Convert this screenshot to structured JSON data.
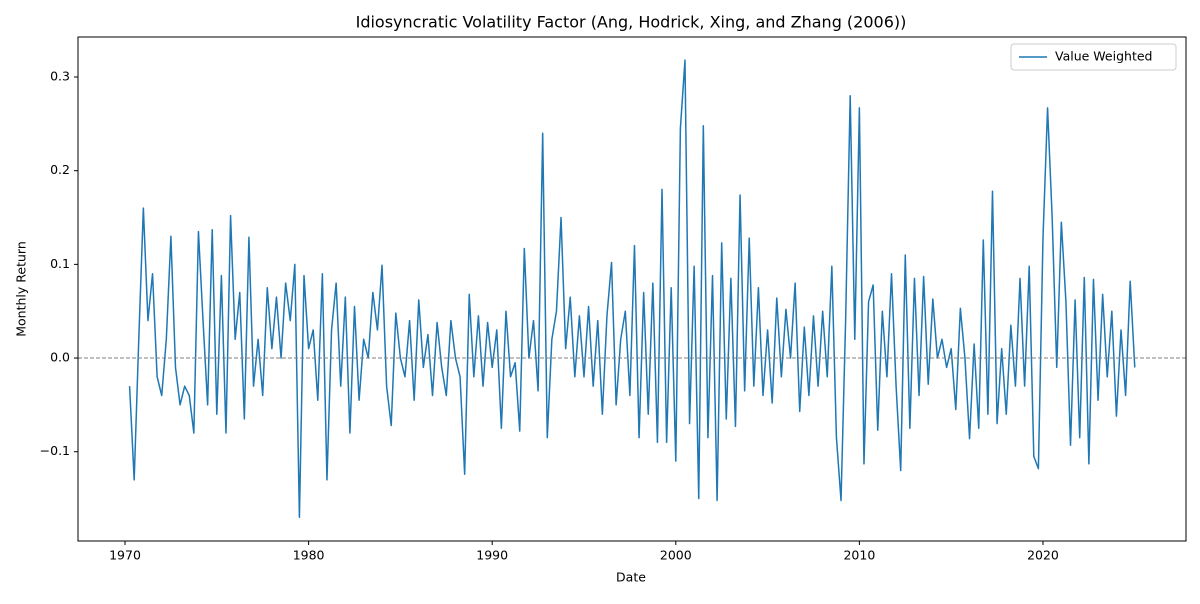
{
  "chart_data": {
    "type": "line",
    "title": "Idiosyncratic Volatility Factor (Ang, Hodrick, Xing, and Zhang (2006))",
    "xlabel": "Date",
    "ylabel": "Monthly Return",
    "x": [
      1970.25,
      1970.5,
      1970.75,
      1971,
      1971.25,
      1971.5,
      1971.75,
      1972,
      1972.25,
      1972.5,
      1972.75,
      1973,
      1973.25,
      1973.5,
      1973.75,
      1974,
      1974.25,
      1974.5,
      1974.75,
      1975,
      1975.25,
      1975.5,
      1975.75,
      1976,
      1976.25,
      1976.5,
      1976.75,
      1977,
      1977.25,
      1977.5,
      1977.75,
      1978,
      1978.25,
      1978.5,
      1978.75,
      1979,
      1979.25,
      1979.5,
      1979.75,
      1980,
      1980.25,
      1980.5,
      1980.75,
      1981,
      1981.25,
      1981.5,
      1981.75,
      1982,
      1982.25,
      1982.5,
      1982.75,
      1983,
      1983.25,
      1983.5,
      1983.75,
      1984,
      1984.25,
      1984.5,
      1984.75,
      1985,
      1985.25,
      1985.5,
      1985.75,
      1986,
      1986.25,
      1986.5,
      1986.75,
      1987,
      1987.25,
      1987.5,
      1987.75,
      1988,
      1988.25,
      1988.5,
      1988.75,
      1989,
      1989.25,
      1989.5,
      1989.75,
      1990,
      1990.25,
      1990.5,
      1990.75,
      1991,
      1991.25,
      1991.5,
      1991.75,
      1992,
      1992.25,
      1992.5,
      1992.75,
      1993,
      1993.25,
      1993.5,
      1993.75,
      1994,
      1994.25,
      1994.5,
      1994.75,
      1995,
      1995.25,
      1995.5,
      1995.75,
      1996,
      1996.25,
      1996.5,
      1996.75,
      1997,
      1997.25,
      1997.5,
      1997.75,
      1998,
      1998.25,
      1998.5,
      1998.75,
      1999,
      1999.25,
      1999.5,
      1999.75,
      2000,
      2000.25,
      2000.5,
      2000.75,
      2001,
      2001.25,
      2001.5,
      2001.75,
      2002,
      2002.25,
      2002.5,
      2002.75,
      2003,
      2003.25,
      2003.5,
      2003.75,
      2004,
      2004.25,
      2004.5,
      2004.75,
      2005,
      2005.25,
      2005.5,
      2005.75,
      2006,
      2006.25,
      2006.5,
      2006.75,
      2007,
      2007.25,
      2007.5,
      2007.75,
      2008,
      2008.25,
      2008.5,
      2008.75,
      2009,
      2009.25,
      2009.5,
      2009.75,
      2010,
      2010.25,
      2010.5,
      2010.75,
      2011,
      2011.25,
      2011.5,
      2011.75,
      2012,
      2012.25,
      2012.5,
      2012.75,
      2013,
      2013.25,
      2013.5,
      2013.75,
      2014,
      2014.25,
      2014.5,
      2014.75,
      2015,
      2015.25,
      2015.5,
      2015.75,
      2016,
      2016.25,
      2016.5,
      2016.75,
      2017,
      2017.25,
      2017.5,
      2017.75,
      2018,
      2018.25,
      2018.5,
      2018.75,
      2019,
      2019.25,
      2019.5,
      2019.75,
      2020,
      2020.25,
      2020.5,
      2020.75,
      2021,
      2021.25,
      2021.5,
      2021.75,
      2022,
      2022.25,
      2022.5,
      2022.75,
      2023,
      2023.25,
      2023.5,
      2023.75,
      2024,
      2024.25,
      2024.5,
      2024.75,
      2025
    ],
    "series": [
      {
        "name": "Value Weighted",
        "color": "#1f77b4",
        "values": [
          -0.03,
          -0.13,
          0.02,
          0.16,
          0.04,
          0.09,
          -0.02,
          -0.04,
          0.02,
          0.13,
          -0.01,
          -0.05,
          -0.03,
          -0.04,
          -0.08,
          0.135,
          0.04,
          -0.05,
          0.137,
          -0.06,
          0.088,
          -0.08,
          0.152,
          0.02,
          0.07,
          -0.065,
          0.129,
          -0.03,
          0.02,
          -0.04,
          0.075,
          0.01,
          0.065,
          0.0,
          0.08,
          0.04,
          0.1,
          -0.17,
          0.088,
          0.01,
          0.03,
          -0.045,
          0.09,
          -0.13,
          0.03,
          0.08,
          -0.03,
          0.065,
          -0.08,
          0.055,
          -0.045,
          0.02,
          0.0,
          0.07,
          0.03,
          0.099,
          -0.03,
          -0.072,
          0.048,
          0.0,
          -0.02,
          0.04,
          -0.045,
          0.062,
          -0.01,
          0.025,
          -0.04,
          0.038,
          -0.01,
          -0.04,
          0.04,
          0.0,
          -0.02,
          -0.124,
          0.068,
          -0.02,
          0.045,
          -0.03,
          0.038,
          -0.01,
          0.03,
          -0.075,
          0.05,
          -0.02,
          -0.005,
          -0.078,
          0.117,
          0.0,
          0.04,
          -0.035,
          0.24,
          -0.085,
          0.02,
          0.05,
          0.15,
          0.01,
          0.065,
          -0.02,
          0.045,
          -0.02,
          0.055,
          -0.03,
          0.04,
          -0.06,
          0.045,
          0.102,
          -0.05,
          0.02,
          0.05,
          -0.04,
          0.12,
          -0.085,
          0.07,
          -0.06,
          0.08,
          -0.09,
          0.18,
          -0.09,
          0.075,
          -0.11,
          0.245,
          0.318,
          -0.07,
          0.098,
          -0.15,
          0.248,
          -0.085,
          0.088,
          -0.152,
          0.123,
          -0.065,
          0.085,
          -0.073,
          0.174,
          -0.035,
          0.128,
          -0.03,
          0.075,
          -0.04,
          0.03,
          -0.048,
          0.064,
          -0.02,
          0.052,
          0.0,
          0.08,
          -0.057,
          0.033,
          -0.04,
          0.045,
          -0.03,
          0.05,
          -0.02,
          0.098,
          -0.085,
          -0.152,
          0.04,
          0.28,
          0.02,
          0.267,
          -0.113,
          0.06,
          0.078,
          -0.077,
          0.05,
          -0.02,
          0.09,
          -0.03,
          -0.12,
          0.11,
          -0.075,
          0.085,
          -0.04,
          0.087,
          -0.028,
          0.063,
          0.0,
          0.02,
          -0.01,
          0.01,
          -0.055,
          0.053,
          0.0,
          -0.086,
          0.015,
          -0.075,
          0.126,
          -0.06,
          0.178,
          -0.07,
          0.01,
          -0.06,
          0.035,
          -0.03,
          0.085,
          -0.03,
          0.098,
          -0.105,
          -0.118,
          0.128,
          0.267,
          0.15,
          -0.01,
          0.145,
          0.06,
          -0.093,
          0.062,
          -0.085,
          0.086,
          -0.113,
          0.084,
          -0.045,
          0.068,
          -0.02,
          0.05,
          -0.062,
          0.03,
          -0.04,
          0.082,
          -0.01
        ]
      }
    ],
    "xlim": [
      1967.44,
      2027.79
    ],
    "xticks": [
      1970,
      1980,
      1990,
      2000,
      2010,
      2020
    ],
    "ylim": [
      -0.1953,
      0.3427
    ],
    "yticks": [
      {
        "value": -0.1,
        "label": "−0.1"
      },
      {
        "value": 0,
        "label": "0.0"
      },
      0.1,
      0.2,
      0.3
    ],
    "reference_line": {
      "y": 0,
      "color": "#808080"
    },
    "legend": "upper right",
    "grid": false
  }
}
